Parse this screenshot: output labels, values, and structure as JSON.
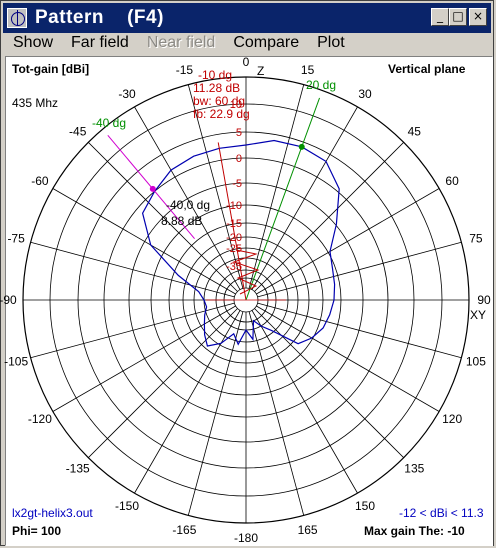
{
  "window": {
    "title": "Pattern    (F4)"
  },
  "menu": [
    "Show",
    "Far field",
    "Near field",
    "Compare",
    "Plot"
  ],
  "menu_disabled": [
    false,
    false,
    true,
    false,
    false
  ],
  "plot": {
    "gain_label": "Tot-gain [dBi]",
    "plane_label": "Vertical plane",
    "frequency": "435 Mhz",
    "z_label": "Z",
    "xy_label": "XY",
    "file": "lx2gt-helix3.out",
    "gain_range": "-12 < dBi < 11.3",
    "phi": "Phi= 100",
    "max_gain": "Max gain The: -10",
    "main_lobe": {
      "angle": "-10 dg",
      "gain": "11.28 dB",
      "bw": "bw: 60 dg",
      "fb": "fb: 22.9 dg"
    },
    "cursor_red": {
      "angle": "-40,0 dg",
      "gain": "8.88 dB"
    },
    "marker_green": "20 dg",
    "marker_magenta": "-40 dg",
    "angle_labels": [
      "0",
      "15",
      "30",
      "45",
      "60",
      "75",
      "90",
      "105",
      "120",
      "135",
      "150",
      "165",
      "-180",
      "-165",
      "-150",
      "-135",
      "-120",
      "-105",
      "-90",
      "-75",
      "-60",
      "-45",
      "-30",
      "-15"
    ],
    "ring_labels": [
      "10",
      "5",
      "0",
      "-5",
      "-10",
      "-15",
      "-20",
      "-25",
      "-35"
    ],
    "colors": {
      "pattern": "#0000b0",
      "red": "#c00000",
      "green": "#009000",
      "magenta": "#d000d0",
      "grid": "#000000"
    }
  }
}
